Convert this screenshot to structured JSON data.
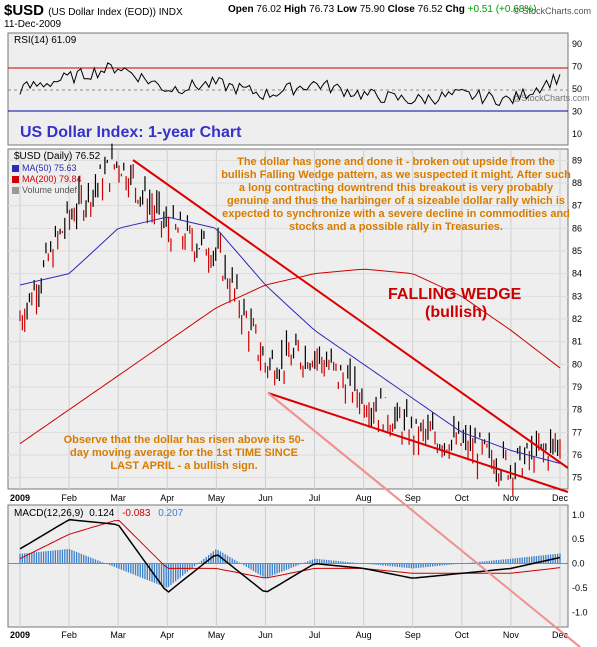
{
  "header": {
    "symbol": "$USD",
    "name": "(US Dollar Index (EOD)) INDX",
    "date": "11-Dec-2009",
    "open_label": "Open",
    "open": "76.02",
    "high_label": "High",
    "high": "76.73",
    "low_label": "Low",
    "low": "75.90",
    "close_label": "Close",
    "close": "76.52",
    "chg_label": "Chg",
    "chg": "+0.51 (+0.68%)",
    "brand": "© StockCharts.com"
  },
  "rsi_panel": {
    "legend": "RSI(14) 61.09",
    "ticks": [
      "90",
      "70",
      "50",
      "30",
      "10"
    ],
    "watermark": "@StockCharts.com"
  },
  "main_panel": {
    "title": "US Dollar Index: 1-year Chart",
    "legend_price": "$USD (Daily) 76.52",
    "legend_ma50": "MA(50) 75.63",
    "legend_ma200": "MA(200) 79.84",
    "legend_vol": "Volume undef",
    "ticks": [
      "89",
      "88",
      "87",
      "86",
      "85",
      "84",
      "83",
      "82",
      "81",
      "80",
      "79",
      "78",
      "77",
      "76",
      "75"
    ],
    "annotation_top": "The dollar has gone and done it - broken out upside from the bullish Falling Wedge pattern, as we suspected it might. After such a long contracting downtrend this breakout is very probably genuine and thus the harbinger of a sizeable dollar rally which is expected to synchronize with a severe decline in commodities and stocks and a possible rally in Treasuries.",
    "wedge_label": "FALLING WEDGE",
    "wedge_sub": "(bullish)",
    "annotation_bottom": "Observe that the dollar has risen above its 50-day moving average for the 1st TIME SINCE LAST APRIL - a bullish sign."
  },
  "macd_panel": {
    "legend_name": "MACD(12,26,9)",
    "legend_v1": "0.124",
    "legend_v2": "-0.083",
    "legend_v3": "0.207",
    "ticks": [
      "1.0",
      "0.5",
      "0.0",
      "-0.5",
      "-1.0"
    ]
  },
  "months": [
    "2009",
    "Feb",
    "Mar",
    "Apr",
    "May",
    "Jun",
    "Jul",
    "Aug",
    "Sep",
    "Oct",
    "Nov",
    "Dec"
  ],
  "colors": {
    "price": "#000000",
    "down": "#cc0000",
    "ma50": "#2b2bb5",
    "ma200": "#cc0000",
    "wedge": "#dd0000",
    "annot": "#d87c00",
    "title": "#3333cc",
    "wedge_text": "#cc0000",
    "hist": "#3b7fc9",
    "rsi": "#000000",
    "panel_bg": "#eeeeee"
  },
  "chart_data": {
    "type": "line",
    "title": "US Dollar Index: 1-year Chart",
    "x": [
      "2009",
      "Feb",
      "Mar",
      "Apr",
      "May",
      "Jun",
      "Jul",
      "Aug",
      "Sep",
      "Oct",
      "Nov",
      "Dec"
    ],
    "series": [
      {
        "name": "$USD (Daily)",
        "values": [
          82.0,
          86.5,
          89.0,
          86.0,
          85.0,
          80.0,
          80.5,
          78.5,
          77.0,
          76.5,
          75.5,
          76.5
        ]
      },
      {
        "name": "MA(50)",
        "values": [
          83.5,
          84.0,
          86.0,
          86.5,
          86.0,
          83.5,
          81.5,
          80.0,
          78.5,
          77.0,
          76.2,
          75.63
        ]
      },
      {
        "name": "MA(200)",
        "values": [
          76.5,
          78.0,
          79.5,
          81.0,
          82.5,
          83.5,
          84.0,
          84.2,
          84.0,
          83.0,
          81.5,
          79.84
        ]
      }
    ],
    "ylim": [
      74.5,
      89.5
    ],
    "rsi": {
      "values": [
        50,
        60,
        70,
        50,
        55,
        45,
        55,
        45,
        40,
        45,
        40,
        61.09
      ],
      "ylim": [
        0,
        100
      ]
    },
    "macd": {
      "macd": [
        0.3,
        0.9,
        0.8,
        -0.6,
        0.2,
        -0.6,
        0.0,
        -0.1,
        -0.3,
        -0.2,
        -0.1,
        0.124
      ],
      "signal": [
        0.1,
        0.6,
        0.9,
        -0.1,
        -0.1,
        -0.3,
        -0.1,
        -0.1,
        -0.2,
        -0.2,
        -0.2,
        -0.083
      ],
      "histogram": [
        0.2,
        0.3,
        -0.1,
        -0.5,
        0.3,
        -0.3,
        0.1,
        0.0,
        -0.1,
        0.0,
        0.1,
        0.207
      ],
      "ylim": [
        -1.3,
        1.2
      ]
    }
  }
}
